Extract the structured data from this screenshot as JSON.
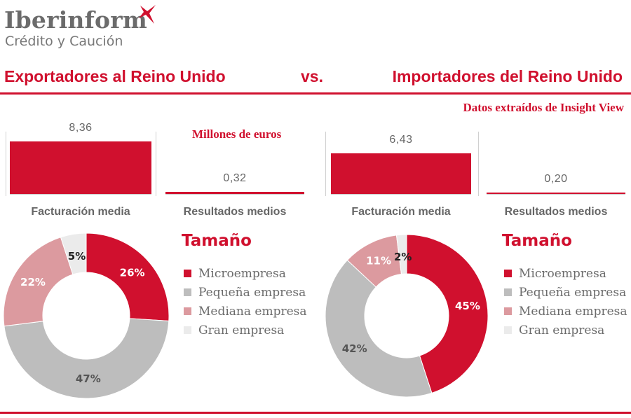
{
  "header": {
    "brand": "Iberinform",
    "brand_sub": "Crédito y Caución",
    "title_left": "Exportadores al Reino Unido",
    "vs": "vs.",
    "title_right": "Importadores del Reino Unido",
    "source": "Datos extraídos de Insight View"
  },
  "colors": {
    "accent": "#d0102e",
    "micro": "#d0102e",
    "pequena": "#bdbdbd",
    "mediana": "#dc9a9f",
    "gran": "#ebebeb"
  },
  "chart_data": [
    {
      "type": "bar",
      "group": "Exportadores al Reino Unido",
      "unit_label": "Millones de euros",
      "categories": [
        "Facturación media",
        "Resultados medios"
      ],
      "values": [
        8.36,
        0.32
      ],
      "value_labels": [
        "8,36",
        "0,32"
      ]
    },
    {
      "type": "bar",
      "group": "Importadores del Reino Unido",
      "categories": [
        "Facturación media",
        "Resultados medios"
      ],
      "values": [
        6.43,
        0.2
      ],
      "value_labels": [
        "6,43",
        "0,20"
      ]
    },
    {
      "type": "pie",
      "group": "Exportadores al Reino Unido",
      "title": "Tamaño",
      "donut": true,
      "labels": [
        "Microempresa",
        "Pequeña empresa",
        "Mediana empresa",
        "Gran empresa"
      ],
      "values": [
        26,
        47,
        22,
        5
      ],
      "value_labels": [
        "26%",
        "47%",
        "22%",
        "5%"
      ]
    },
    {
      "type": "pie",
      "group": "Importadores del Reino Unido",
      "title": "Tamaño",
      "donut": true,
      "labels": [
        "Microempresa",
        "Pequeña empresa",
        "Mediana empresa",
        "Gran empresa"
      ],
      "values": [
        45,
        42,
        11,
        2
      ],
      "value_labels": [
        "45%",
        "42%",
        "11%",
        "2%"
      ]
    }
  ]
}
